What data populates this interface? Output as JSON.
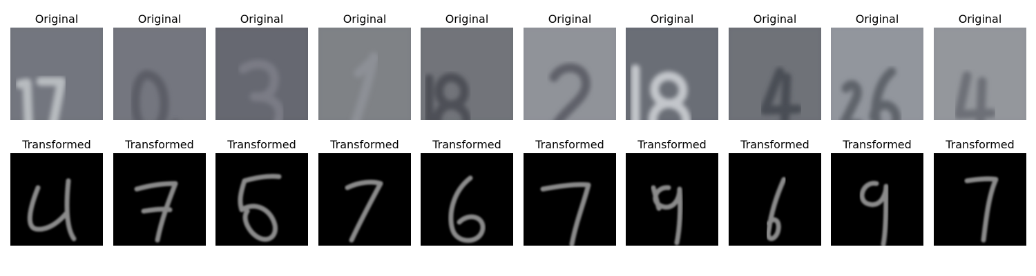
{
  "rows": [
    {
      "label": "Original",
      "images": [
        {
          "digit_shown": "17",
          "background": "#6c6f78",
          "stroke": "#b8bcc0",
          "style": "photo"
        },
        {
          "digit_shown": "0",
          "background": "#6d6f78",
          "stroke": "#5b5d66",
          "style": "photo"
        },
        {
          "digit_shown": "3",
          "background": "#5e6069",
          "stroke": "#7a7c85",
          "style": "photo"
        },
        {
          "digit_shown": "1",
          "background": "#787b80",
          "stroke": "#8d9096",
          "style": "photo"
        },
        {
          "digit_shown": "18",
          "background": "#6a6d73",
          "stroke": "#4d5056",
          "style": "photo"
        },
        {
          "digit_shown": "2",
          "background": "#8a8d94",
          "stroke": "#5e6169",
          "style": "photo"
        },
        {
          "digit_shown": "18",
          "background": "#62666f",
          "stroke": "#c3c6cb",
          "style": "photo"
        },
        {
          "digit_shown": "4",
          "background": "#676a71",
          "stroke": "#4a4d55",
          "style": "photo"
        },
        {
          "digit_shown": "26",
          "background": "#8c9098",
          "stroke": "#5f636b",
          "style": "photo"
        },
        {
          "digit_shown": "4",
          "background": "#8e9197",
          "stroke": "#6d7077",
          "style": "photo"
        }
      ]
    },
    {
      "label": "Transformed",
      "images": [
        {
          "digit_shown": "4",
          "background": "#000000",
          "stroke": "#8a8a8a",
          "style": "mnist"
        },
        {
          "digit_shown": "7",
          "background": "#000000",
          "stroke": "#8a8a8a",
          "style": "mnist"
        },
        {
          "digit_shown": "5",
          "background": "#000000",
          "stroke": "#8a8a8a",
          "style": "mnist"
        },
        {
          "digit_shown": "7",
          "background": "#000000",
          "stroke": "#8a8a8a",
          "style": "mnist"
        },
        {
          "digit_shown": "6",
          "background": "#000000",
          "stroke": "#8a8a8a",
          "style": "mnist"
        },
        {
          "digit_shown": "7",
          "background": "#000000",
          "stroke": "#8a8a8a",
          "style": "mnist"
        },
        {
          "digit_shown": "9",
          "background": "#000000",
          "stroke": "#8a8a8a",
          "style": "mnist"
        },
        {
          "digit_shown": "6",
          "background": "#000000",
          "stroke": "#8a8a8a",
          "style": "mnist"
        },
        {
          "digit_shown": "9",
          "background": "#000000",
          "stroke": "#8a8a8a",
          "style": "mnist"
        },
        {
          "digit_shown": "7",
          "background": "#000000",
          "stroke": "#8a8a8a",
          "style": "mnist"
        }
      ]
    }
  ]
}
